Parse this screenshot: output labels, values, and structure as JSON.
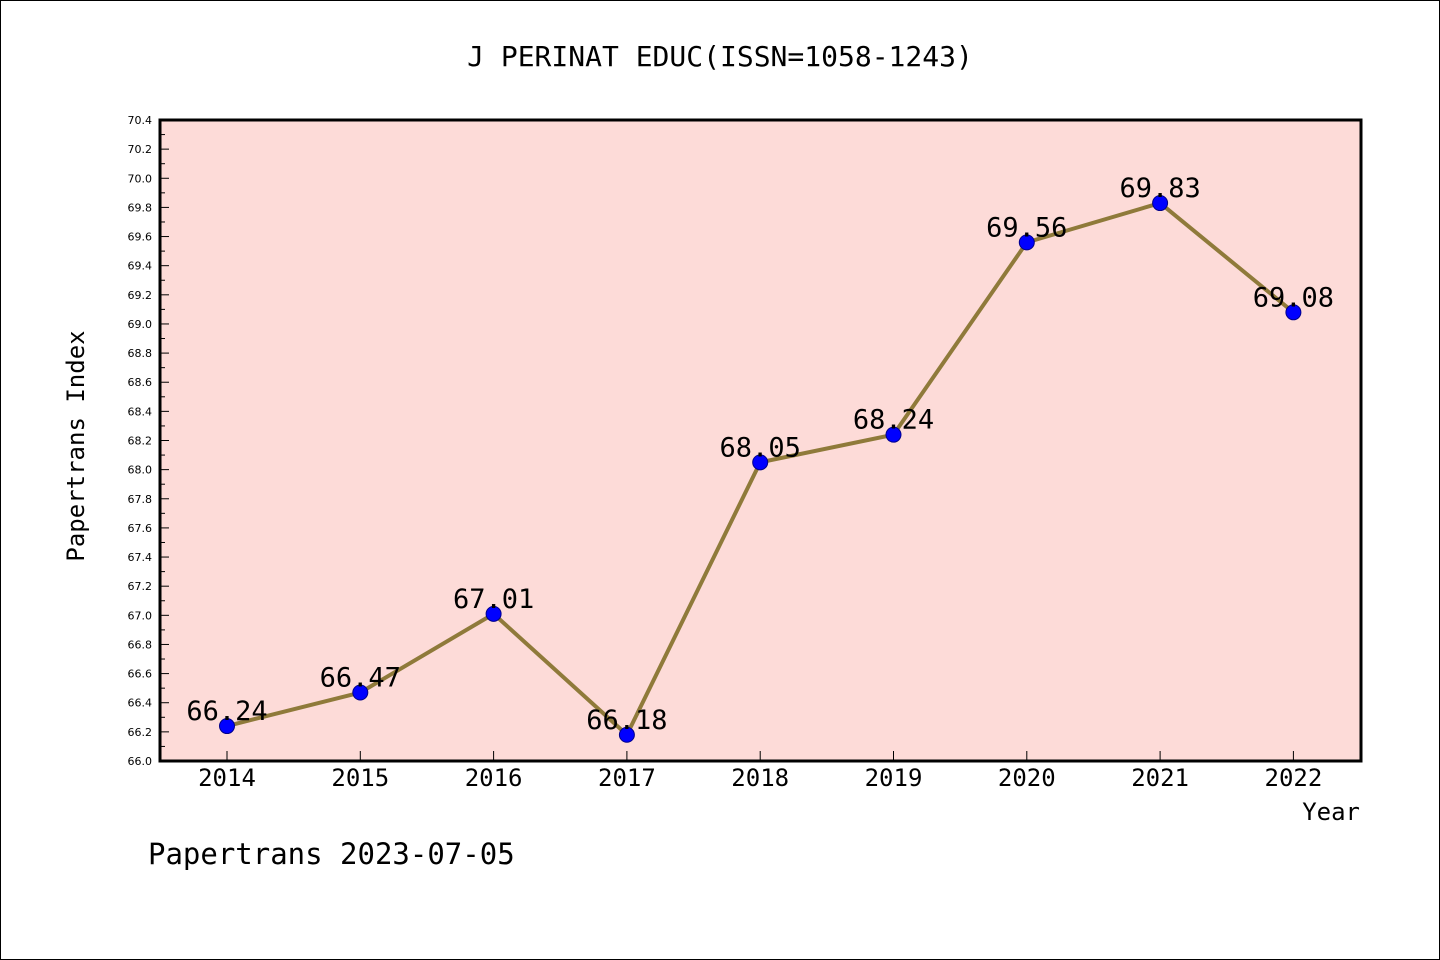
{
  "chart_data": {
    "type": "line",
    "title": "J PERINAT EDUC(ISSN=1058-1243)",
    "xlabel": "Year",
    "ylabel": "Papertrans Index",
    "categories": [
      "2014",
      "2015",
      "2016",
      "2017",
      "2018",
      "2019",
      "2020",
      "2021",
      "2022"
    ],
    "values": [
      66.24,
      66.47,
      67.01,
      66.18,
      68.05,
      68.24,
      69.56,
      69.83,
      69.08
    ],
    "data_labels": [
      "66.24",
      "66.47",
      "67.01",
      "66.18",
      "68.05",
      "68.24",
      "69.56",
      "69.83",
      "69.08"
    ],
    "ylim": [
      66.0,
      70.4
    ],
    "ytick_step": 0.2,
    "ytick_labels": [
      "66.0",
      "66.2",
      "66.4",
      "66.6",
      "66.8",
      "67.0",
      "67.2",
      "67.4",
      "67.6",
      "67.8",
      "68.0",
      "68.2",
      "68.4",
      "68.6",
      "68.8",
      "69.0",
      "69.2",
      "69.4",
      "69.6",
      "69.8",
      "70.0",
      "70.2",
      "70.4"
    ],
    "grid": false,
    "legend": "none",
    "colors": {
      "plot_background": "#fddbd8",
      "line": "#8f7a3a",
      "marker": "#0000ff",
      "axes": "#000000"
    }
  },
  "footer": {
    "text": "Papertrans 2023-07-05"
  }
}
